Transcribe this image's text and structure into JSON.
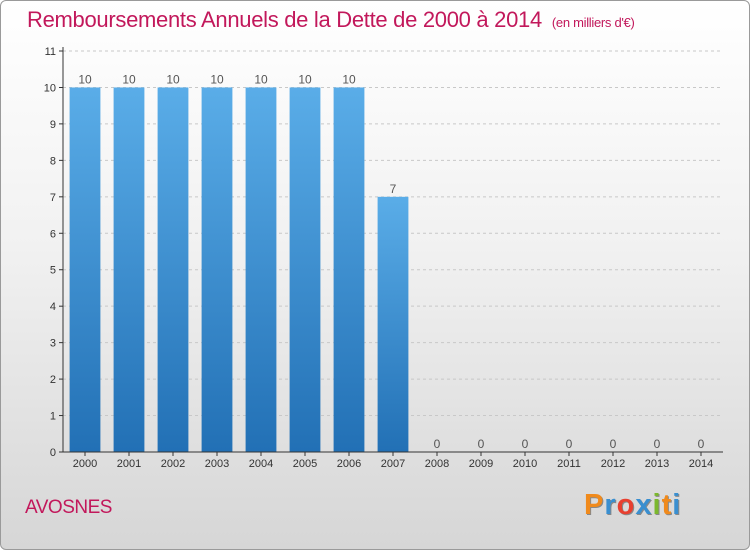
{
  "header": {
    "title": "Remboursements Annuels de la Dette de 2000 à 2014",
    "subtitle": "(en milliers d'€)"
  },
  "footer": {
    "commune": "AVOSNES",
    "brand": "Proxiti"
  },
  "colors": {
    "title": "#c2185b",
    "bar_top": "#5aade8",
    "bar_bottom": "#2270b5",
    "brand_letters": [
      "#f08a1c",
      "#3a8fd0",
      "#e84030",
      "#3a8fd0",
      "#7cb82e",
      "#f08a1c",
      "#3a8fd0"
    ]
  },
  "chart_data": {
    "type": "bar",
    "title": "Remboursements Annuels de la Dette de 2000 à 2014",
    "subtitle": "(en milliers d'€)",
    "xlabel": "",
    "ylabel": "",
    "categories": [
      "2000",
      "2001",
      "2002",
      "2003",
      "2004",
      "2005",
      "2006",
      "2007",
      "2008",
      "2009",
      "2010",
      "2011",
      "2012",
      "2013",
      "2014"
    ],
    "values": [
      10,
      10,
      10,
      10,
      10,
      10,
      10,
      7,
      0,
      0,
      0,
      0,
      0,
      0,
      0
    ],
    "data_labels": [
      "10",
      "10",
      "10",
      "10",
      "10",
      "10",
      "10",
      "7",
      "0",
      "0",
      "0",
      "0",
      "0",
      "0",
      "0"
    ],
    "ylim": [
      0,
      11
    ],
    "yticks": [
      0,
      1,
      2,
      3,
      4,
      5,
      6,
      7,
      8,
      9,
      10,
      11
    ],
    "grid": "horizontal-dashed",
    "legend": "none"
  }
}
